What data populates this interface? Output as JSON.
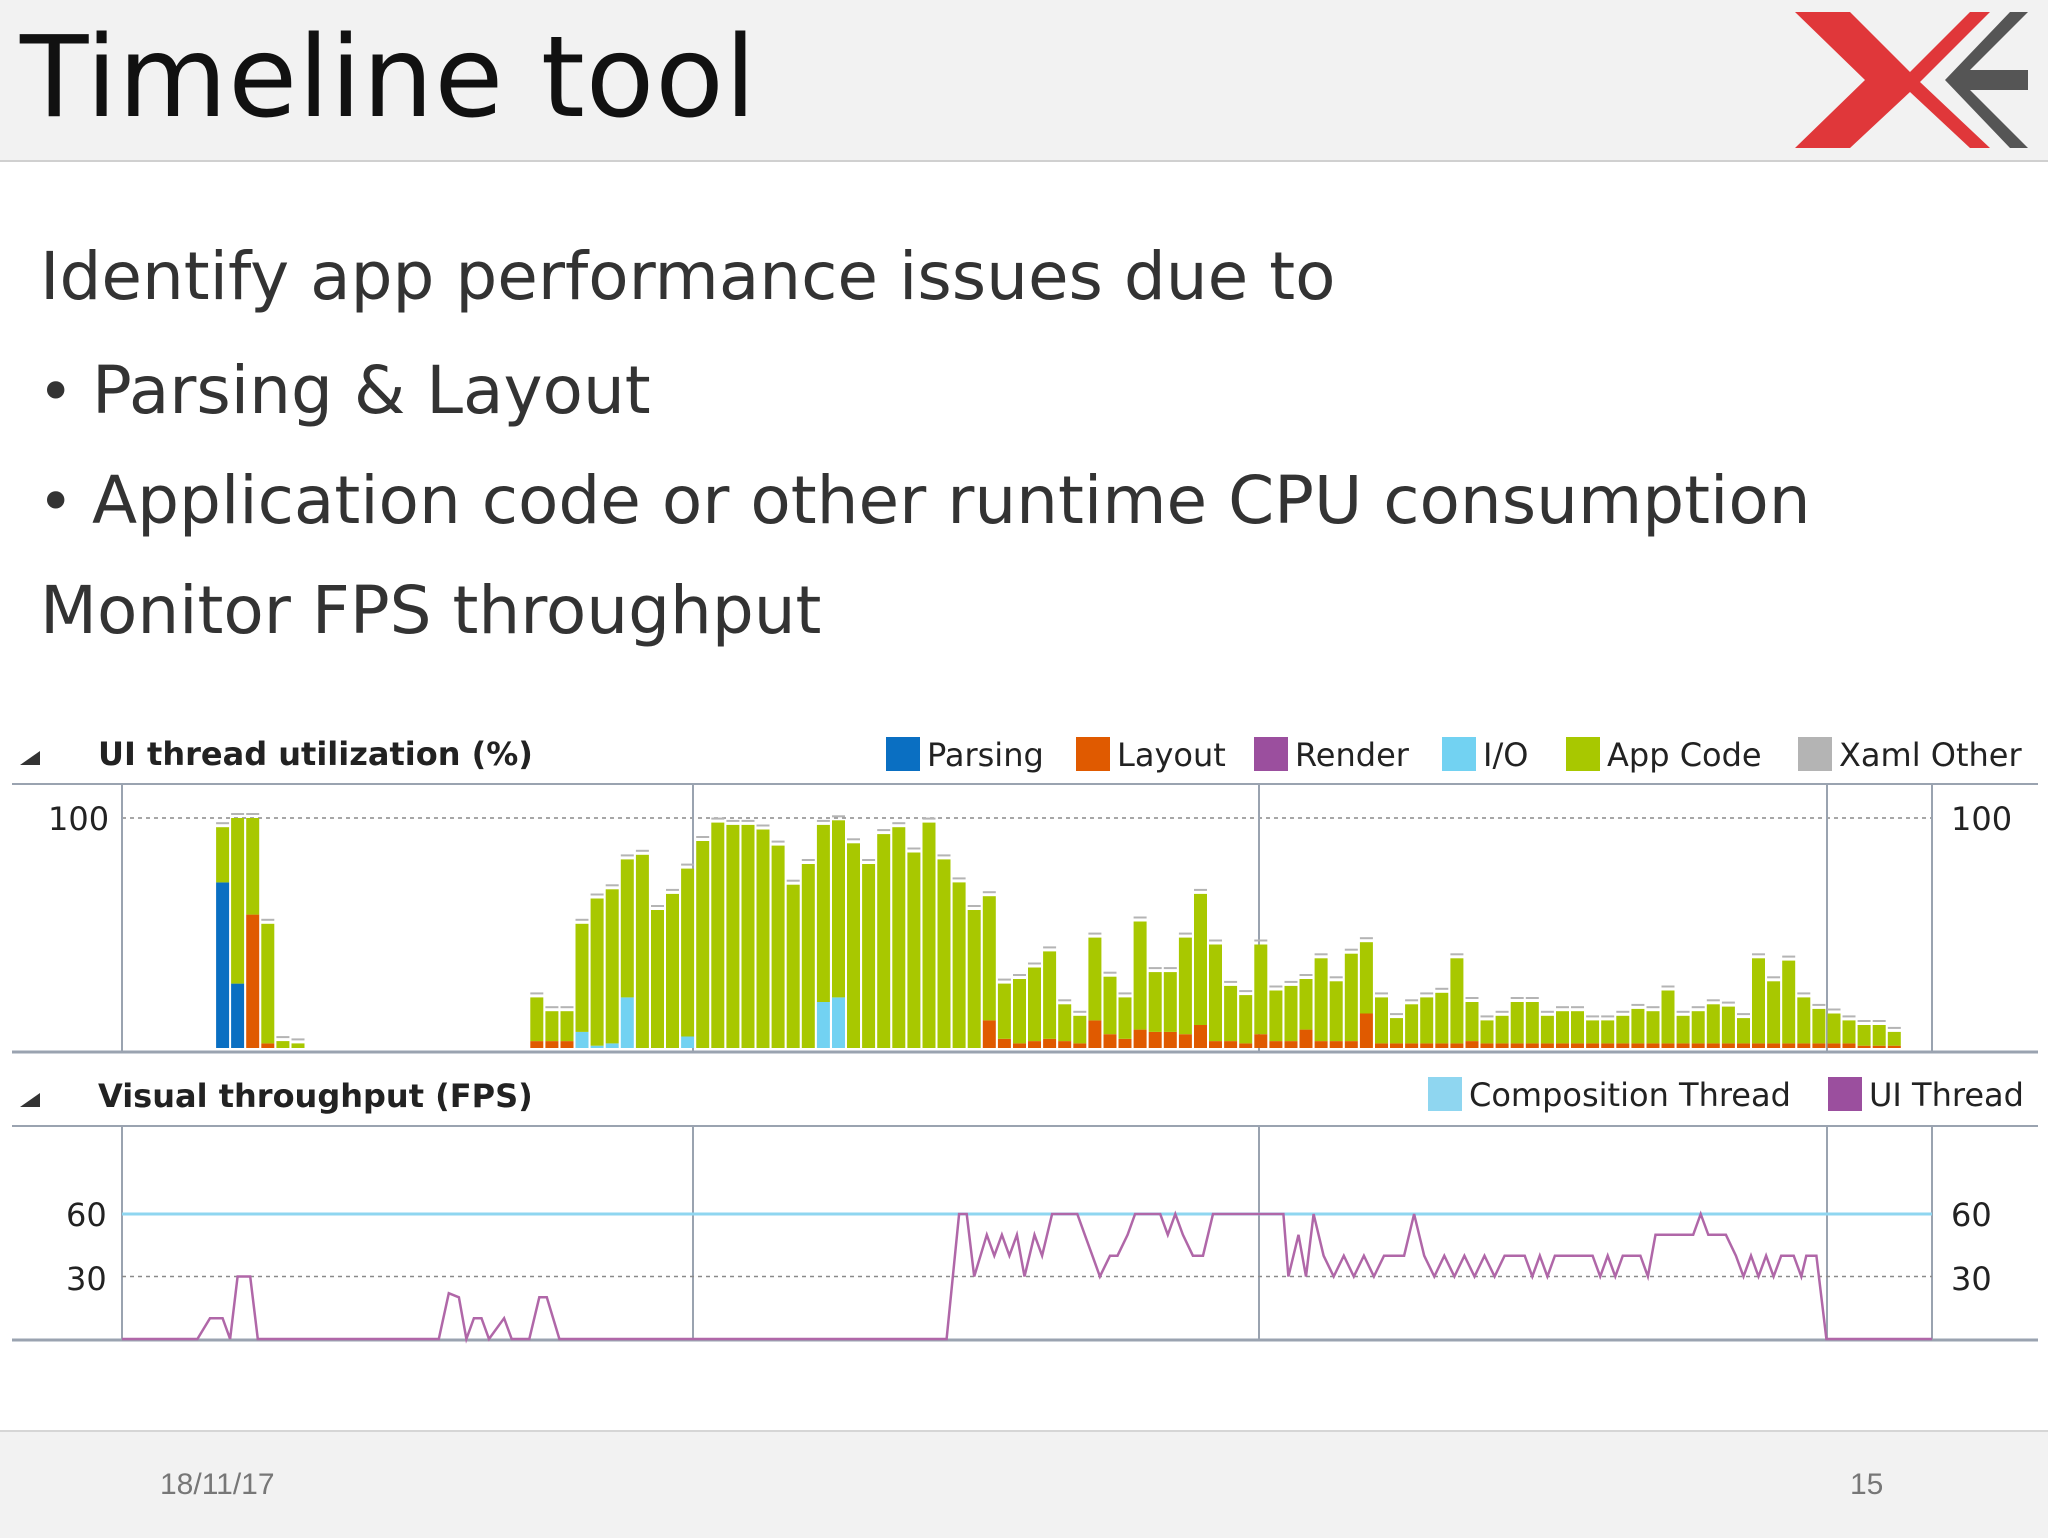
{
  "slide": {
    "title": "Timeline tool",
    "line1": "Identify app performance issues due to",
    "bullet1": "Parsing & Layout",
    "bullet2": "Application code or other runtime CPU consumption",
    "line2": "Monitor FPS throughput",
    "footer_date": "18/11/17",
    "footer_page": "15"
  },
  "icons": {
    "logo": "xe-logo-icon",
    "collapse": "collapse-triangle-icon"
  },
  "colors": {
    "parsing": "#0a6fc2",
    "layout": "#e05a00",
    "render": "#9b4f9e",
    "io": "#72d2f2",
    "app_code": "#a8c800",
    "xaml_other": "#b4b4b4",
    "composition": "#8fd6f0",
    "ui_thread": "#b067a8",
    "logo_red": "#e0373a",
    "logo_gray": "#555555"
  },
  "chart_data": [
    {
      "type": "bar",
      "title": "UI thread utilization (%)",
      "y_tick_left": "100",
      "y_tick_right": "100",
      "ylim": [
        0,
        100
      ],
      "legend": [
        "Parsing",
        "Layout",
        "Render",
        "I/O",
        "App Code",
        "Xaml Other"
      ],
      "stack_order": [
        "parsing",
        "layout",
        "io",
        "app_code"
      ],
      "bars": [
        {
          "t": 4.0,
          "p": 72,
          "l": 0,
          "io": 0,
          "a": 24
        },
        {
          "t": 4.6,
          "p": 28,
          "l": 0,
          "io": 0,
          "a": 72
        },
        {
          "t": 5.2,
          "p": 0,
          "l": 58,
          "io": 0,
          "a": 42
        },
        {
          "t": 5.8,
          "p": 0,
          "l": 2,
          "io": 0,
          "a": 52
        },
        {
          "t": 6.4,
          "p": 0,
          "l": 0,
          "io": 0,
          "a": 3
        },
        {
          "t": 7.0,
          "p": 0,
          "l": 0,
          "io": 0,
          "a": 2
        },
        {
          "t": 16.5,
          "p": 0,
          "l": 3,
          "io": 0,
          "a": 19
        },
        {
          "t": 17.1,
          "p": 0,
          "l": 3,
          "io": 0,
          "a": 13
        },
        {
          "t": 17.7,
          "p": 0,
          "l": 3,
          "io": 0,
          "a": 13
        },
        {
          "t": 18.3,
          "p": 0,
          "l": 0,
          "io": 7,
          "a": 47
        },
        {
          "t": 18.9,
          "p": 0,
          "l": 0,
          "io": 1,
          "a": 64
        },
        {
          "t": 19.5,
          "p": 0,
          "l": 0,
          "io": 2,
          "a": 67
        },
        {
          "t": 20.1,
          "p": 0,
          "l": 0,
          "io": 22,
          "a": 60
        },
        {
          "t": 20.7,
          "p": 0,
          "l": 0,
          "io": 0,
          "a": 84
        },
        {
          "t": 21.3,
          "p": 0,
          "l": 0,
          "io": 0,
          "a": 60
        },
        {
          "t": 21.9,
          "p": 0,
          "l": 0,
          "io": 0,
          "a": 67
        },
        {
          "t": 22.5,
          "p": 0,
          "l": 0,
          "io": 5,
          "a": 73
        },
        {
          "t": 23.1,
          "p": 0,
          "l": 0,
          "io": 0,
          "a": 90
        },
        {
          "t": 23.7,
          "p": 0,
          "l": 0,
          "io": 0,
          "a": 98
        },
        {
          "t": 24.3,
          "p": 0,
          "l": 0,
          "io": 0,
          "a": 97
        },
        {
          "t": 24.9,
          "p": 0,
          "l": 0,
          "io": 0,
          "a": 97
        },
        {
          "t": 25.5,
          "p": 0,
          "l": 0,
          "io": 0,
          "a": 95
        },
        {
          "t": 26.1,
          "p": 0,
          "l": 0,
          "io": 0,
          "a": 88
        },
        {
          "t": 26.7,
          "p": 0,
          "l": 0,
          "io": 0,
          "a": 71
        },
        {
          "t": 27.3,
          "p": 0,
          "l": 0,
          "io": 0,
          "a": 80
        },
        {
          "t": 27.9,
          "p": 0,
          "l": 0,
          "io": 20,
          "a": 77
        },
        {
          "t": 28.5,
          "p": 0,
          "l": 0,
          "io": 22,
          "a": 77
        },
        {
          "t": 29.1,
          "p": 0,
          "l": 0,
          "io": 0,
          "a": 89
        },
        {
          "t": 29.7,
          "p": 0,
          "l": 0,
          "io": 0,
          "a": 80
        },
        {
          "t": 30.3,
          "p": 0,
          "l": 0,
          "io": 0,
          "a": 93
        },
        {
          "t": 30.9,
          "p": 0,
          "l": 0,
          "io": 0,
          "a": 96
        },
        {
          "t": 31.5,
          "p": 0,
          "l": 0,
          "io": 0,
          "a": 85
        },
        {
          "t": 32.1,
          "p": 0,
          "l": 0,
          "io": 0,
          "a": 98
        },
        {
          "t": 32.7,
          "p": 0,
          "l": 0,
          "io": 0,
          "a": 82
        },
        {
          "t": 33.3,
          "p": 0,
          "l": 0,
          "io": 0,
          "a": 72
        },
        {
          "t": 33.9,
          "p": 0,
          "l": 0,
          "io": 0,
          "a": 60
        },
        {
          "t": 34.5,
          "p": 0,
          "l": 12,
          "io": 0,
          "a": 54
        },
        {
          "t": 35.1,
          "p": 0,
          "l": 4,
          "io": 0,
          "a": 24
        },
        {
          "t": 35.7,
          "p": 0,
          "l": 2,
          "io": 0,
          "a": 28
        },
        {
          "t": 36.3,
          "p": 0,
          "l": 3,
          "io": 0,
          "a": 32
        },
        {
          "t": 36.9,
          "p": 0,
          "l": 4,
          "io": 0,
          "a": 38
        },
        {
          "t": 37.5,
          "p": 0,
          "l": 3,
          "io": 0,
          "a": 16
        },
        {
          "t": 38.1,
          "p": 0,
          "l": 2,
          "io": 0,
          "a": 12
        },
        {
          "t": 38.7,
          "p": 0,
          "l": 12,
          "io": 0,
          "a": 36
        },
        {
          "t": 39.3,
          "p": 0,
          "l": 6,
          "io": 0,
          "a": 25
        },
        {
          "t": 39.9,
          "p": 0,
          "l": 4,
          "io": 0,
          "a": 18
        },
        {
          "t": 40.5,
          "p": 0,
          "l": 8,
          "io": 0,
          "a": 47
        },
        {
          "t": 41.1,
          "p": 0,
          "l": 7,
          "io": 0,
          "a": 26
        },
        {
          "t": 41.7,
          "p": 0,
          "l": 7,
          "io": 0,
          "a": 26
        },
        {
          "t": 42.3,
          "p": 0,
          "l": 6,
          "io": 0,
          "a": 42
        },
        {
          "t": 42.9,
          "p": 0,
          "l": 10,
          "io": 0,
          "a": 57
        },
        {
          "t": 43.5,
          "p": 0,
          "l": 3,
          "io": 0,
          "a": 42
        },
        {
          "t": 44.1,
          "p": 0,
          "l": 3,
          "io": 0,
          "a": 24
        },
        {
          "t": 44.7,
          "p": 0,
          "l": 2,
          "io": 0,
          "a": 21
        },
        {
          "t": 45.3,
          "p": 0,
          "l": 6,
          "io": 0,
          "a": 39
        },
        {
          "t": 45.9,
          "p": 0,
          "l": 3,
          "io": 0,
          "a": 22
        },
        {
          "t": 46.5,
          "p": 0,
          "l": 3,
          "io": 0,
          "a": 24
        },
        {
          "t": 47.1,
          "p": 0,
          "l": 8,
          "io": 0,
          "a": 22
        },
        {
          "t": 47.7,
          "p": 0,
          "l": 3,
          "io": 0,
          "a": 36
        },
        {
          "t": 48.3,
          "p": 0,
          "l": 3,
          "io": 0,
          "a": 26
        },
        {
          "t": 48.9,
          "p": 0,
          "l": 3,
          "io": 0,
          "a": 38
        },
        {
          "t": 49.5,
          "p": 0,
          "l": 15,
          "io": 0,
          "a": 31
        },
        {
          "t": 50.1,
          "p": 0,
          "l": 2,
          "io": 0,
          "a": 20
        },
        {
          "t": 50.7,
          "p": 0,
          "l": 2,
          "io": 0,
          "a": 11
        },
        {
          "t": 51.3,
          "p": 0,
          "l": 2,
          "io": 0,
          "a": 17
        },
        {
          "t": 51.9,
          "p": 0,
          "l": 2,
          "io": 0,
          "a": 20
        },
        {
          "t": 52.5,
          "p": 0,
          "l": 2,
          "io": 0,
          "a": 22
        },
        {
          "t": 53.1,
          "p": 0,
          "l": 2,
          "io": 0,
          "a": 37
        },
        {
          "t": 53.7,
          "p": 0,
          "l": 3,
          "io": 0,
          "a": 17
        },
        {
          "t": 54.3,
          "p": 0,
          "l": 2,
          "io": 0,
          "a": 10
        },
        {
          "t": 54.9,
          "p": 0,
          "l": 2,
          "io": 0,
          "a": 12
        },
        {
          "t": 55.5,
          "p": 0,
          "l": 2,
          "io": 0,
          "a": 18
        },
        {
          "t": 56.1,
          "p": 0,
          "l": 2,
          "io": 0,
          "a": 18
        },
        {
          "t": 56.7,
          "p": 0,
          "l": 2,
          "io": 0,
          "a": 12
        },
        {
          "t": 57.3,
          "p": 0,
          "l": 2,
          "io": 0,
          "a": 14
        },
        {
          "t": 57.9,
          "p": 0,
          "l": 2,
          "io": 0,
          "a": 14
        },
        {
          "t": 58.5,
          "p": 0,
          "l": 2,
          "io": 0,
          "a": 10
        },
        {
          "t": 59.1,
          "p": 0,
          "l": 2,
          "io": 0,
          "a": 10
        },
        {
          "t": 59.7,
          "p": 0,
          "l": 2,
          "io": 0,
          "a": 12
        },
        {
          "t": 60.3,
          "p": 0,
          "l": 2,
          "io": 0,
          "a": 15
        },
        {
          "t": 60.9,
          "p": 0,
          "l": 2,
          "io": 0,
          "a": 14
        },
        {
          "t": 61.5,
          "p": 0,
          "l": 2,
          "io": 0,
          "a": 23
        },
        {
          "t": 62.1,
          "p": 0,
          "l": 2,
          "io": 0,
          "a": 12
        },
        {
          "t": 62.7,
          "p": 0,
          "l": 2,
          "io": 0,
          "a": 14
        },
        {
          "t": 63.3,
          "p": 0,
          "l": 2,
          "io": 0,
          "a": 17
        },
        {
          "t": 63.9,
          "p": 0,
          "l": 2,
          "io": 0,
          "a": 16
        },
        {
          "t": 64.5,
          "p": 0,
          "l": 2,
          "io": 0,
          "a": 11
        },
        {
          "t": 65.1,
          "p": 0,
          "l": 2,
          "io": 0,
          "a": 37
        },
        {
          "t": 65.7,
          "p": 0,
          "l": 2,
          "io": 0,
          "a": 27
        },
        {
          "t": 66.3,
          "p": 0,
          "l": 2,
          "io": 0,
          "a": 36
        },
        {
          "t": 66.9,
          "p": 0,
          "l": 2,
          "io": 0,
          "a": 20
        },
        {
          "t": 67.5,
          "p": 0,
          "l": 2,
          "io": 0,
          "a": 15
        },
        {
          "t": 68.1,
          "p": 0,
          "l": 2,
          "io": 0,
          "a": 13
        },
        {
          "t": 68.7,
          "p": 0,
          "l": 2,
          "io": 0,
          "a": 10
        },
        {
          "t": 69.3,
          "p": 0,
          "l": 1,
          "io": 0,
          "a": 9
        },
        {
          "t": 69.9,
          "p": 0,
          "l": 1,
          "io": 0,
          "a": 9
        },
        {
          "t": 70.5,
          "p": 0,
          "l": 1,
          "io": 0,
          "a": 6
        }
      ]
    },
    {
      "type": "line",
      "title": "Visual throughput (FPS)",
      "y_ticks": [
        "60",
        "30"
      ],
      "ylim": [
        0,
        75
      ],
      "legend": [
        "Composition Thread",
        "UI Thread"
      ],
      "composition_level": 60,
      "ui_thread": [
        [
          0,
          0
        ],
        [
          3.0,
          0
        ],
        [
          3.5,
          10
        ],
        [
          4.0,
          10
        ],
        [
          4.3,
          0
        ],
        [
          4.6,
          30
        ],
        [
          5.1,
          30
        ],
        [
          5.4,
          0
        ],
        [
          12.6,
          0
        ],
        [
          13.0,
          22
        ],
        [
          13.4,
          20
        ],
        [
          13.7,
          0
        ],
        [
          14.0,
          10
        ],
        [
          14.3,
          10
        ],
        [
          14.6,
          0
        ],
        [
          15.2,
          10
        ],
        [
          15.5,
          0
        ],
        [
          16.2,
          0
        ],
        [
          16.6,
          20
        ],
        [
          16.9,
          20
        ],
        [
          17.4,
          0
        ],
        [
          32.8,
          0
        ],
        [
          33.3,
          60
        ],
        [
          33.6,
          60
        ],
        [
          33.9,
          30
        ],
        [
          34.4,
          50
        ],
        [
          34.7,
          40
        ],
        [
          35.0,
          50
        ],
        [
          35.3,
          40
        ],
        [
          35.6,
          50
        ],
        [
          35.9,
          30
        ],
        [
          36.3,
          50
        ],
        [
          36.6,
          40
        ],
        [
          37.0,
          60
        ],
        [
          38.0,
          60
        ],
        [
          38.3,
          50
        ],
        [
          38.6,
          40
        ],
        [
          38.9,
          30
        ],
        [
          39.3,
          40
        ],
        [
          39.6,
          40
        ],
        [
          40.0,
          50
        ],
        [
          40.3,
          60
        ],
        [
          41.3,
          60
        ],
        [
          41.6,
          50
        ],
        [
          41.9,
          60
        ],
        [
          42.2,
          50
        ],
        [
          42.6,
          40
        ],
        [
          43.0,
          40
        ],
        [
          43.4,
          60
        ],
        [
          46.2,
          60
        ],
        [
          46.4,
          30
        ],
        [
          46.8,
          50
        ],
        [
          47.1,
          30
        ],
        [
          47.4,
          60
        ],
        [
          47.8,
          40
        ],
        [
          48.2,
          30
        ],
        [
          48.6,
          40
        ],
        [
          49.0,
          30
        ],
        [
          49.4,
          40
        ],
        [
          49.8,
          30
        ],
        [
          50.2,
          40
        ],
        [
          51.0,
          40
        ],
        [
          51.4,
          60
        ],
        [
          51.8,
          40
        ],
        [
          52.2,
          30
        ],
        [
          52.6,
          40
        ],
        [
          53.0,
          30
        ],
        [
          53.4,
          40
        ],
        [
          53.8,
          30
        ],
        [
          54.2,
          40
        ],
        [
          54.6,
          30
        ],
        [
          55.0,
          40
        ],
        [
          55.8,
          40
        ],
        [
          56.1,
          30
        ],
        [
          56.4,
          40
        ],
        [
          56.7,
          30
        ],
        [
          57.0,
          40
        ],
        [
          58.5,
          40
        ],
        [
          58.8,
          30
        ],
        [
          59.1,
          40
        ],
        [
          59.4,
          30
        ],
        [
          59.7,
          40
        ],
        [
          60.4,
          40
        ],
        [
          60.7,
          30
        ],
        [
          61.0,
          50
        ],
        [
          62.5,
          50
        ],
        [
          62.8,
          60
        ],
        [
          63.1,
          50
        ],
        [
          63.8,
          50
        ],
        [
          64.2,
          40
        ],
        [
          64.5,
          30
        ],
        [
          64.8,
          40
        ],
        [
          65.1,
          30
        ],
        [
          65.4,
          40
        ],
        [
          65.7,
          30
        ],
        [
          66.0,
          40
        ],
        [
          66.5,
          40
        ],
        [
          66.8,
          30
        ],
        [
          67.0,
          40
        ],
        [
          67.4,
          40
        ],
        [
          67.8,
          0
        ],
        [
          72,
          0
        ]
      ]
    }
  ]
}
